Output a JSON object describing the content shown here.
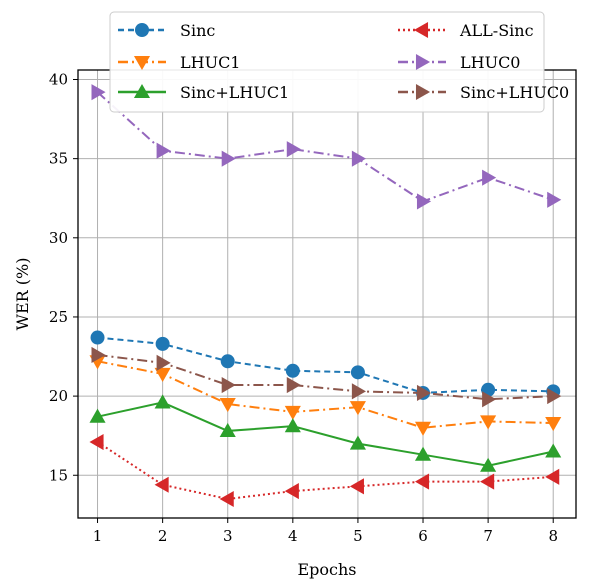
{
  "chart_data": {
    "type": "line",
    "title": "",
    "xlabel": "Epochs",
    "ylabel": "WER (%)",
    "x": [
      1,
      2,
      3,
      4,
      5,
      6,
      7,
      8
    ],
    "xlim": [
      0.7,
      8.35
    ],
    "ylim": [
      12.3,
      40.6
    ],
    "xticks": [
      1,
      2,
      3,
      4,
      5,
      6,
      7,
      8
    ],
    "yticks": [
      15,
      20,
      25,
      30,
      35,
      40
    ],
    "grid": true,
    "legend_location": "top-center",
    "series": [
      {
        "name": "Sinc",
        "values": [
          23.7,
          23.3,
          22.2,
          21.6,
          21.5,
          20.2,
          20.4,
          20.3
        ],
        "color": "#1f77b4",
        "dash": "6,4",
        "marker": "circle"
      },
      {
        "name": "LHUC1",
        "values": [
          22.2,
          21.4,
          19.5,
          19.0,
          19.3,
          18.0,
          18.4,
          18.3
        ],
        "color": "#ff7f0e",
        "dash": "10,4,2,4",
        "marker": "triangle-down"
      },
      {
        "name": "Sinc+LHUC1",
        "values": [
          18.7,
          19.6,
          17.8,
          18.1,
          17.0,
          16.3,
          15.6,
          16.5
        ],
        "color": "#2ca02c",
        "dash": "",
        "marker": "triangle-up"
      },
      {
        "name": "ALL-Sinc",
        "values": [
          17.1,
          14.4,
          13.5,
          14.0,
          14.3,
          14.6,
          14.6,
          14.9
        ],
        "color": "#d62728",
        "dash": "2,3",
        "marker": "triangle-left"
      },
      {
        "name": "LHUC0",
        "values": [
          39.2,
          35.5,
          35.0,
          35.6,
          35.0,
          32.3,
          33.8,
          32.4
        ],
        "color": "#9467bd",
        "dash": "10,4,2,4",
        "marker": "triangle-right"
      },
      {
        "name": "Sinc+LHUC0",
        "values": [
          22.6,
          22.1,
          20.7,
          20.7,
          20.3,
          20.2,
          19.8,
          20.0
        ],
        "color": "#8c564b",
        "dash": "10,4,2,4",
        "marker": "triangle-right"
      }
    ]
  }
}
